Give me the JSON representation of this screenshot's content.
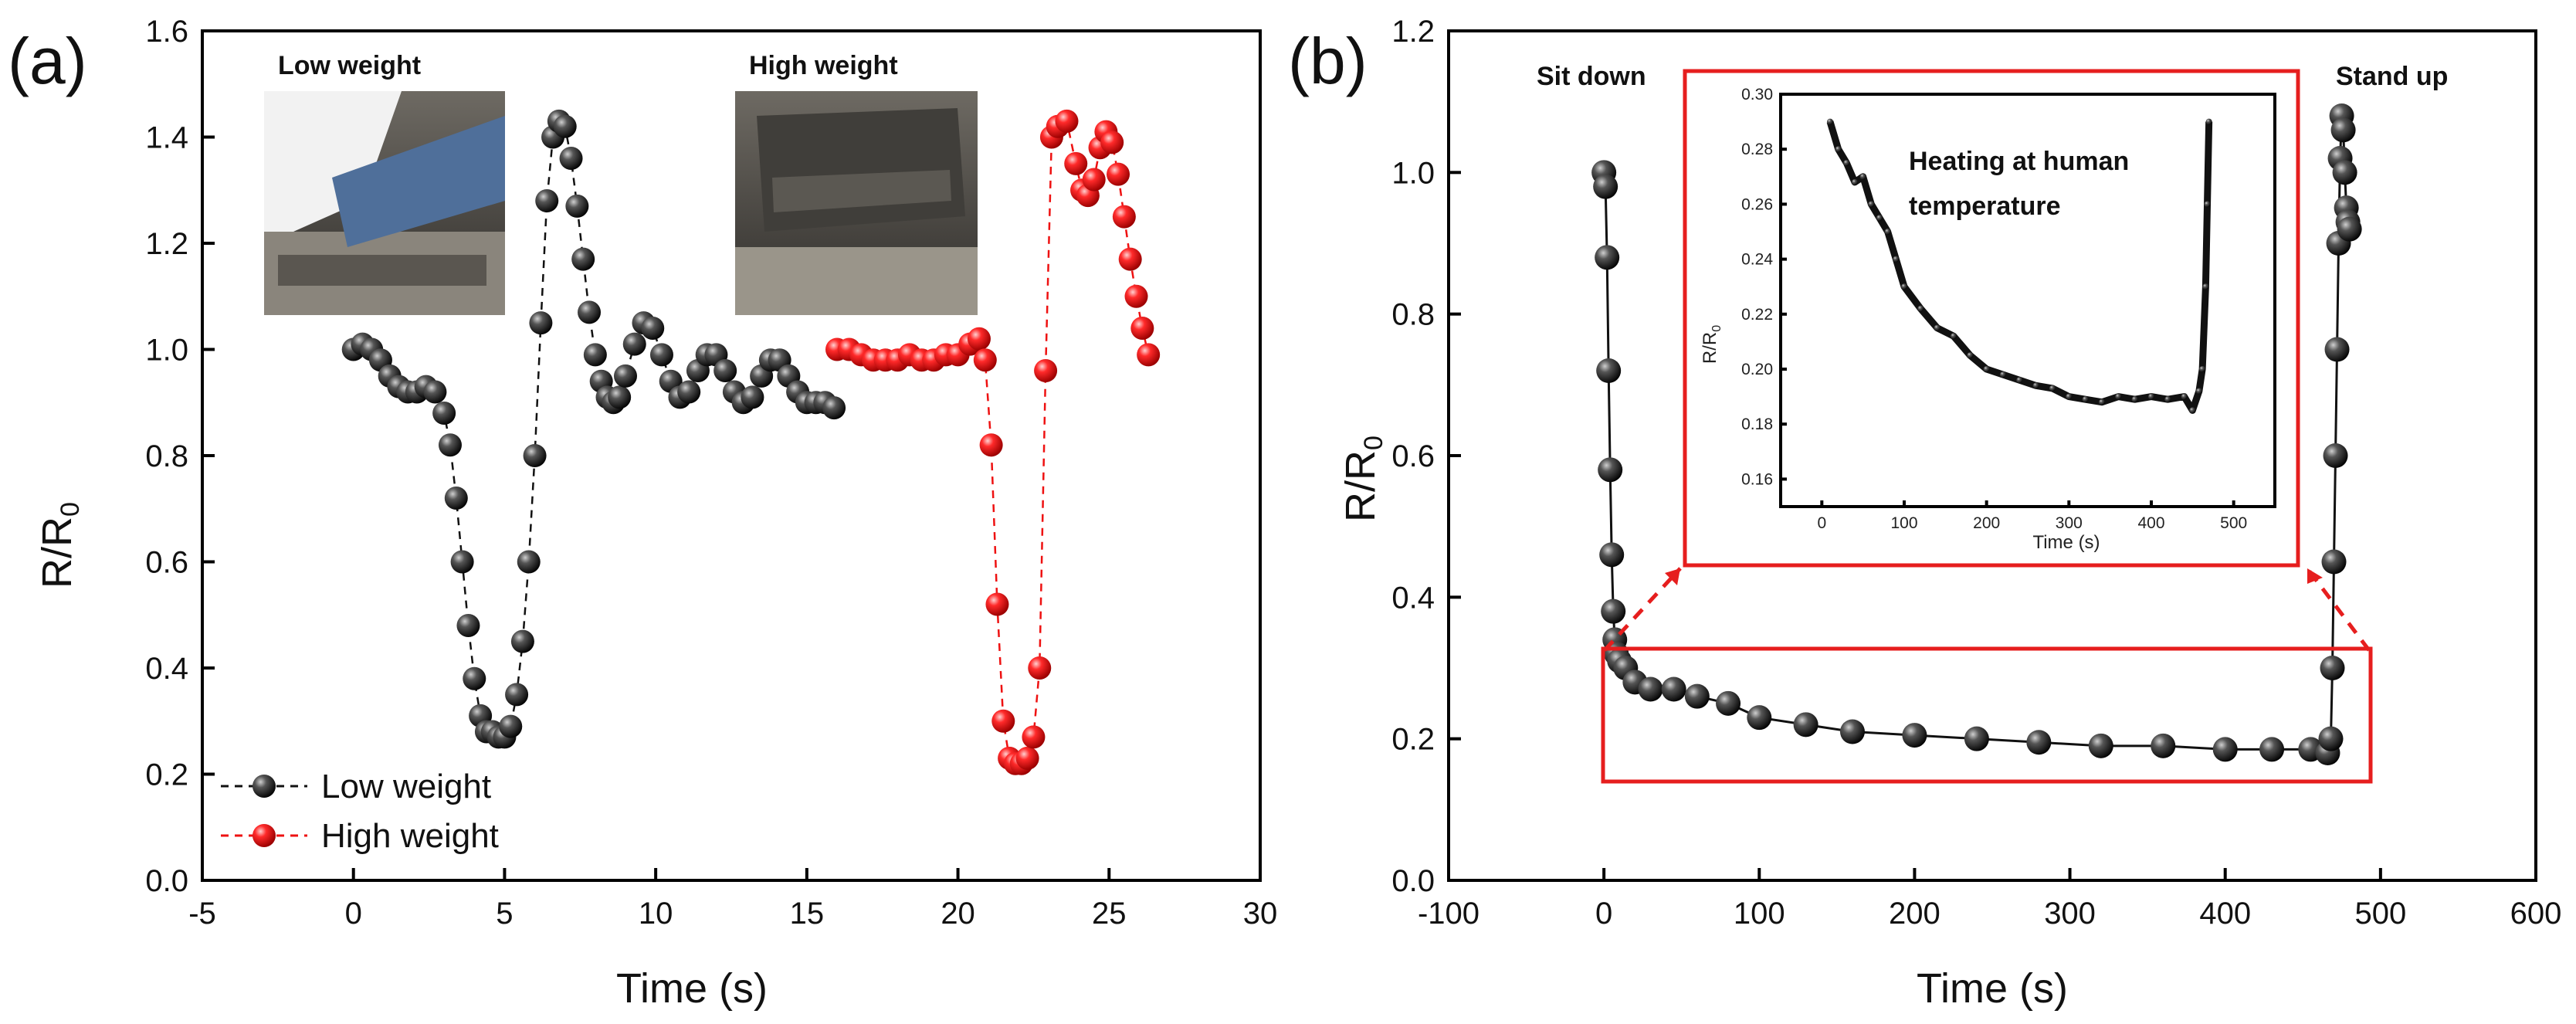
{
  "chart_data": [
    {
      "panel": "(a)",
      "type": "line",
      "xlabel": "Time (s)",
      "ylabel_main": "R/R",
      "ylabel_sub": "0",
      "xlim": [
        -5,
        30
      ],
      "ylim": [
        0.0,
        1.6
      ],
      "xticks": [
        "-5",
        "0",
        "5",
        "10",
        "15",
        "20",
        "25",
        "30"
      ],
      "yticks": [
        "0.0",
        "0.2",
        "0.4",
        "0.6",
        "0.8",
        "1.0",
        "1.2",
        "1.4",
        "1.6"
      ],
      "legend": {
        "position": "bottom-left"
      },
      "photos": [
        {
          "caption": "Low weight",
          "scene": "seat-with-leg"
        },
        {
          "caption": "High weight",
          "scene": "seat-with-bag"
        }
      ],
      "series": [
        {
          "name": "Low weight",
          "color": "#111111",
          "x": [
            0,
            0.3,
            0.6,
            0.9,
            1.2,
            1.5,
            1.8,
            2.1,
            2.4,
            2.7,
            3.0,
            3.2,
            3.4,
            3.6,
            3.8,
            4.0,
            4.2,
            4.4,
            4.6,
            4.8,
            5.0,
            5.2,
            5.4,
            5.6,
            5.8,
            6.0,
            6.2,
            6.4,
            6.6,
            6.8,
            7.0,
            7.2,
            7.4,
            7.6,
            7.8,
            8.0,
            8.2,
            8.4,
            8.6,
            8.8,
            9.0,
            9.3,
            9.6,
            9.9,
            10.2,
            10.5,
            10.8,
            11.1,
            11.4,
            11.7,
            12.0,
            12.3,
            12.6,
            12.9,
            13.2,
            13.5,
            13.8,
            14.1,
            14.4,
            14.7,
            15.0,
            15.3,
            15.6,
            15.9
          ],
          "y": [
            1.0,
            1.01,
            1.0,
            0.98,
            0.95,
            0.93,
            0.92,
            0.92,
            0.93,
            0.92,
            0.88,
            0.82,
            0.72,
            0.6,
            0.48,
            0.38,
            0.31,
            0.28,
            0.28,
            0.27,
            0.27,
            0.29,
            0.35,
            0.45,
            0.6,
            0.8,
            1.05,
            1.28,
            1.4,
            1.43,
            1.42,
            1.36,
            1.27,
            1.17,
            1.07,
            0.99,
            0.94,
            0.91,
            0.9,
            0.91,
            0.95,
            1.01,
            1.05,
            1.04,
            0.99,
            0.94,
            0.91,
            0.92,
            0.96,
            0.99,
            0.99,
            0.96,
            0.92,
            0.9,
            0.91,
            0.95,
            0.98,
            0.98,
            0.95,
            0.92,
            0.9,
            0.9,
            0.9,
            0.89
          ]
        },
        {
          "name": "High weight",
          "color": "#ee1111",
          "x": [
            16.0,
            16.4,
            16.8,
            17.2,
            17.6,
            18.0,
            18.4,
            18.8,
            19.2,
            19.6,
            20.0,
            20.4,
            20.7,
            20.9,
            21.1,
            21.3,
            21.5,
            21.7,
            21.9,
            22.1,
            22.3,
            22.5,
            22.7,
            22.9,
            23.1,
            23.3,
            23.6,
            23.9,
            24.1,
            24.3,
            24.5,
            24.7,
            24.9,
            25.1,
            25.3,
            25.5,
            25.7,
            25.9,
            26.1,
            26.3
          ],
          "y": [
            1.0,
            1.0,
            0.99,
            0.98,
            0.98,
            0.98,
            0.99,
            0.98,
            0.98,
            0.99,
            0.99,
            1.01,
            1.02,
            0.98,
            0.82,
            0.52,
            0.3,
            0.23,
            0.22,
            0.22,
            0.23,
            0.27,
            0.4,
            0.96,
            1.4,
            1.42,
            1.43,
            1.35,
            1.3,
            1.29,
            1.32,
            1.38,
            1.41,
            1.39,
            1.33,
            1.25,
            1.17,
            1.1,
            1.04,
            0.99
          ]
        }
      ]
    },
    {
      "panel": "(b)",
      "type": "line",
      "xlabel": "Time (s)",
      "ylabel_main": "R/R",
      "ylabel_sub": "0",
      "xlim": [
        -100,
        600
      ],
      "ylim": [
        0.0,
        1.2
      ],
      "xticks": [
        "-100",
        "0",
        "100",
        "200",
        "300",
        "400",
        "500",
        "600"
      ],
      "yticks": [
        "0.0",
        "0.2",
        "0.4",
        "0.6",
        "0.8",
        "1.0",
        "1.2"
      ],
      "annotations": [
        "Sit down",
        "Stand up"
      ],
      "series": [
        {
          "name": "R/R0",
          "color": "#111111",
          "x": [
            0,
            1,
            2,
            3,
            4,
            5,
            6,
            7,
            8,
            10,
            14,
            20,
            30,
            45,
            60,
            80,
            100,
            130,
            160,
            200,
            240,
            280,
            320,
            360,
            400,
            430,
            455,
            466,
            468,
            469,
            470,
            471,
            472,
            473,
            474,
            475,
            476,
            477,
            478,
            479,
            480
          ],
          "y": [
            1.0,
            0.98,
            0.88,
            0.72,
            0.58,
            0.46,
            0.38,
            0.34,
            0.32,
            0.31,
            0.3,
            0.28,
            0.27,
            0.27,
            0.26,
            0.25,
            0.23,
            0.22,
            0.21,
            0.205,
            0.2,
            0.195,
            0.19,
            0.19,
            0.185,
            0.185,
            0.185,
            0.18,
            0.2,
            0.3,
            0.45,
            0.6,
            0.75,
            0.9,
            1.02,
            1.08,
            1.06,
            1.0,
            0.95,
            0.93,
            0.92
          ]
        }
      ],
      "inset": {
        "title": "Heating at human temperature",
        "xlabel": "Time (s)",
        "ylabel": "R/R",
        "ylabel_sub": "0",
        "xlim": [
          -50,
          550
        ],
        "ylim": [
          0.15,
          0.3
        ],
        "xticks": [
          "0",
          "100",
          "200",
          "300",
          "400",
          "500"
        ],
        "yticks": [
          "0.16",
          "0.18",
          "0.20",
          "0.22",
          "0.24",
          "0.26",
          "0.28",
          "0.30"
        ],
        "x": [
          10,
          20,
          30,
          40,
          50,
          60,
          70,
          80,
          90,
          100,
          120,
          140,
          160,
          180,
          200,
          220,
          240,
          260,
          280,
          300,
          320,
          340,
          360,
          380,
          400,
          420,
          440,
          450,
          458,
          462,
          466,
          468,
          470
        ],
        "y": [
          0.29,
          0.28,
          0.275,
          0.268,
          0.27,
          0.26,
          0.255,
          0.25,
          0.24,
          0.23,
          0.222,
          0.215,
          0.212,
          0.205,
          0.2,
          0.198,
          0.196,
          0.194,
          0.193,
          0.19,
          0.189,
          0.188,
          0.19,
          0.189,
          0.19,
          0.189,
          0.19,
          0.185,
          0.192,
          0.2,
          0.23,
          0.26,
          0.29
        ]
      }
    }
  ]
}
